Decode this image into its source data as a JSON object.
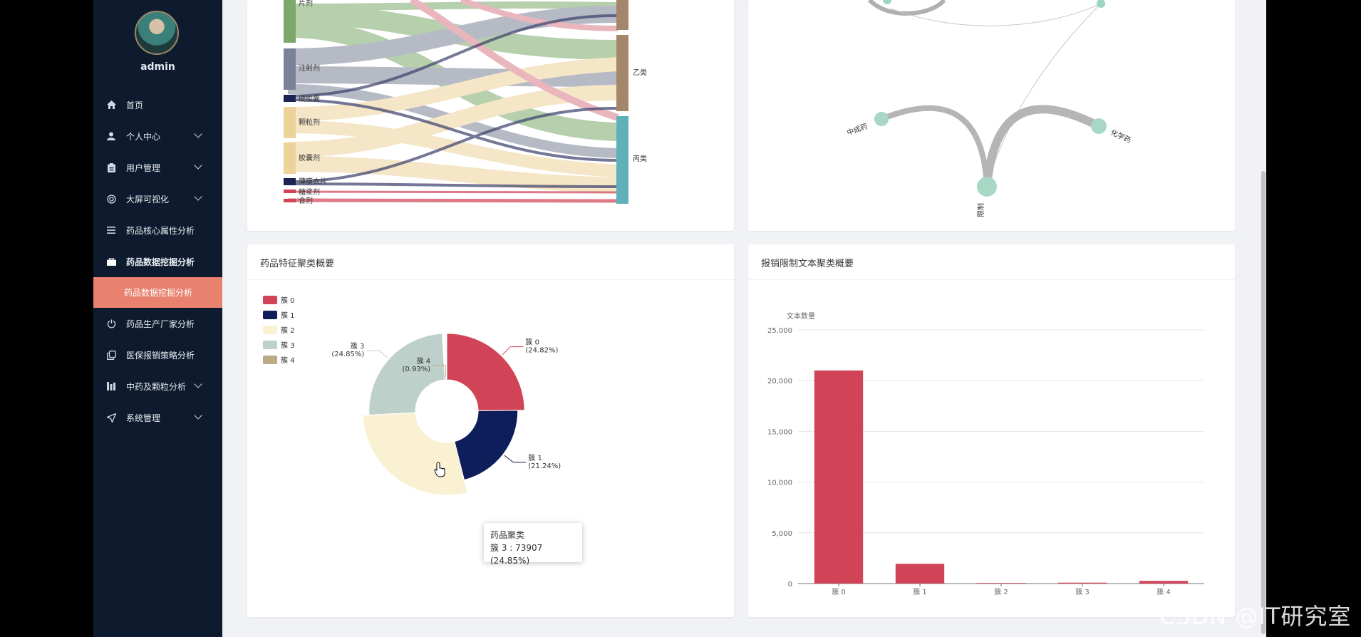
{
  "user": {
    "name": "admin"
  },
  "menu": {
    "items": [
      {
        "label": "首页",
        "icon": "home-icon",
        "chevron": false
      },
      {
        "label": "个人中心",
        "icon": "user-icon",
        "chevron": true
      },
      {
        "label": "用户管理",
        "icon": "clipboard-icon",
        "chevron": true
      },
      {
        "label": "大屏可视化",
        "icon": "target-icon",
        "chevron": true
      },
      {
        "label": "药品核心属性分析",
        "icon": "list-icon",
        "chevron": false
      },
      {
        "label": "药品数据挖掘分析",
        "icon": "briefcase-icon",
        "chevron": false,
        "active": true
      }
    ],
    "active_sub": "药品数据挖掘分析",
    "items_after": [
      {
        "label": "药品生产厂家分析",
        "icon": "power-icon",
        "chevron": false
      },
      {
        "label": "医保报销策略分析",
        "icon": "copy-icon",
        "chevron": false
      },
      {
        "label": "中药及颗粒分析",
        "icon": "barchart-icon",
        "chevron": true
      },
      {
        "label": "系统管理",
        "icon": "send-icon",
        "chevron": true
      }
    ]
  },
  "sankey": {
    "left_nodes": [
      "片剂",
      "注射剂",
      "硬胶囊",
      "颗粒剂",
      "胶囊剂",
      "薄膜衣片",
      "糖浆剂",
      "合剂"
    ],
    "right_nodes": [
      "乙类",
      "丙类"
    ]
  },
  "graph": {
    "nodes": [
      "中成药",
      "化学药",
      "限制"
    ]
  },
  "pie_card": {
    "title": "药品特征聚类概要",
    "tooltip_title": "药品聚类",
    "tooltip_value": "簇 3 : 73907 (24.85%)"
  },
  "bar_card": {
    "title": "报销限制文本聚类概要"
  },
  "chart_data": [
    {
      "type": "pie",
      "title": "药品特征聚类概要",
      "categories": [
        "簇 0",
        "簇 1",
        "簇 2",
        "簇 3",
        "簇 4"
      ],
      "percent": [
        24.82,
        21.24,
        28.16,
        24.85,
        0.93
      ],
      "values": [
        73815,
        63168,
        83749,
        73907,
        2766
      ],
      "labels": [
        "簇 0\n(24.82%)",
        "簇 1\n(21.24%)",
        "",
        "簇 3\n(24.85%)",
        "簇 4\n(0.93%)"
      ],
      "legend_placement": "top-left"
    },
    {
      "type": "bar",
      "title": "报销限制文本聚类概要",
      "ylabel": "文本数量",
      "categories": [
        "簇 0",
        "簇 1",
        "簇 2",
        "簇 3",
        "簇 4"
      ],
      "values": [
        21000,
        1950,
        60,
        90,
        260
      ],
      "ylim": [
        0,
        25000
      ],
      "yticks": [
        "0",
        "5,000",
        "10,000",
        "15,000",
        "20,000",
        "25,000"
      ],
      "grid": true
    }
  ],
  "colors": {
    "c0": "#d14356",
    "c1": "#0e1e5b",
    "c2": "#faf1d3",
    "c3": "#bdd0c9",
    "c4": "#bca985",
    "sidebar_bg": "#0e1b2e",
    "active_sub_bg": "#e8826f",
    "bar": "#d14356"
  },
  "watermark": "CSDN @IT研究室"
}
